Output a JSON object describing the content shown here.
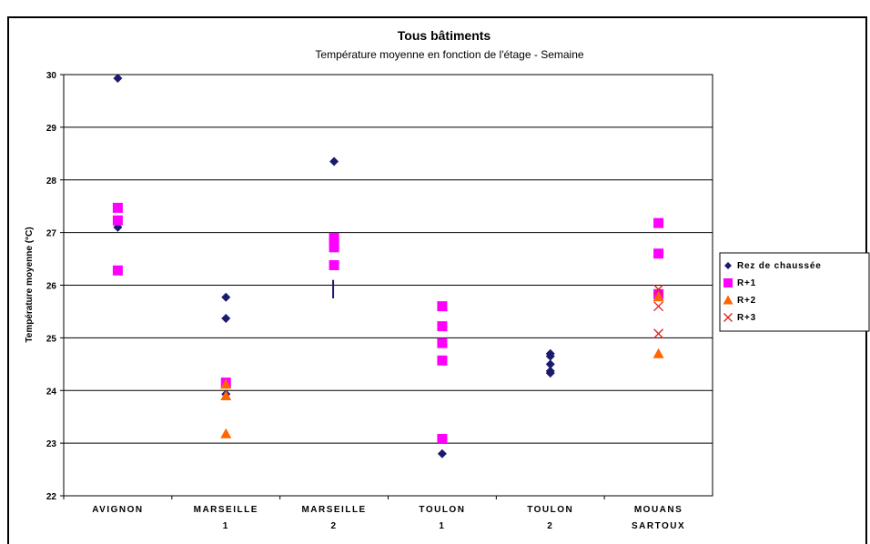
{
  "chart_data": {
    "type": "scatter",
    "title": "Tous bâtiments",
    "subtitle": "Température moyenne en fonction de l'étage - Semaine",
    "ylabel": "Température moyenne (°C)",
    "xlabel": "",
    "ylim": [
      22,
      30
    ],
    "yticks": [
      "22",
      "23",
      "24",
      "25",
      "26",
      "27",
      "28",
      "29",
      "30"
    ],
    "categories": [
      {
        "line1": "AVIGNON",
        "line2": ""
      },
      {
        "line1": "MARSEILLE",
        "line2": "1"
      },
      {
        "line1": "MARSEILLE",
        "line2": "2"
      },
      {
        "line1": "TOULON",
        "line2": "1"
      },
      {
        "line1": "TOULON",
        "line2": "2"
      },
      {
        "line1": "MOUANS",
        "line2": "SARTOUX"
      }
    ],
    "grid": true,
    "legend_position": "right",
    "series": [
      {
        "name": "Rez de chaussée",
        "marker": "diamond",
        "color": "#1a1a6e",
        "points": [
          {
            "x": 0,
            "y": 29.93
          },
          {
            "x": 0,
            "y": 27.1
          },
          {
            "x": 1,
            "y": 25.77
          },
          {
            "x": 1,
            "y": 25.37
          },
          {
            "x": 1,
            "y": 23.93
          },
          {
            "x": 2,
            "y": 28.35
          },
          {
            "x": 3,
            "y": 22.8
          },
          {
            "x": 4,
            "y": 24.7
          },
          {
            "x": 4,
            "y": 24.65
          },
          {
            "x": 4,
            "y": 24.5
          },
          {
            "x": 4,
            "y": 24.37
          },
          {
            "x": 4,
            "y": 24.33
          }
        ]
      },
      {
        "name": "R+1",
        "marker": "square",
        "color": "#ff00ff",
        "points": [
          {
            "x": 0,
            "y": 27.47
          },
          {
            "x": 0,
            "y": 27.23
          },
          {
            "x": 0,
            "y": 26.28
          },
          {
            "x": 1,
            "y": 24.15
          },
          {
            "x": 2,
            "y": 26.9
          },
          {
            "x": 2,
            "y": 26.83
          },
          {
            "x": 2,
            "y": 26.72
          },
          {
            "x": 2,
            "y": 26.38
          },
          {
            "x": 3,
            "y": 25.6
          },
          {
            "x": 3,
            "y": 25.22
          },
          {
            "x": 3,
            "y": 24.9
          },
          {
            "x": 3,
            "y": 24.57
          },
          {
            "x": 3,
            "y": 23.08
          },
          {
            "x": 5,
            "y": 27.18
          },
          {
            "x": 5,
            "y": 26.6
          },
          {
            "x": 5,
            "y": 25.83
          }
        ]
      },
      {
        "name": "R+2",
        "marker": "triangle",
        "color": "#ff6600",
        "points": [
          {
            "x": 1,
            "y": 24.12
          },
          {
            "x": 1,
            "y": 23.9
          },
          {
            "x": 1,
            "y": 23.18
          },
          {
            "x": 5,
            "y": 25.78
          },
          {
            "x": 5,
            "y": 24.7
          }
        ]
      },
      {
        "name": "R+3",
        "marker": "cross",
        "color": "#e0201a",
        "points": [
          {
            "x": 5,
            "y": 25.92
          },
          {
            "x": 5,
            "y": 25.6
          },
          {
            "x": 5,
            "y": 25.08
          }
        ]
      }
    ],
    "annotations": [
      {
        "type": "vertical-line",
        "x": 2,
        "y_from": 25.75,
        "y_to": 26.1,
        "color": "#1a1a6e"
      }
    ]
  }
}
